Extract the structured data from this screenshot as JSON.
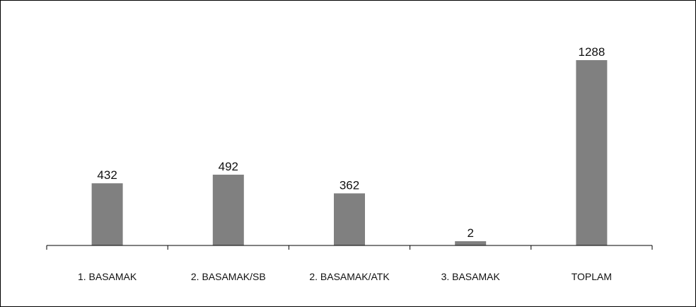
{
  "chart_data": {
    "type": "bar",
    "title": "",
    "xlabel": "",
    "ylabel": "",
    "categories": [
      "1. BASAMAK",
      "2. BASAMAK/SB",
      "2. BASAMAK/ATK",
      "3. BASAMAK",
      "TOPLAM"
    ],
    "values": [
      432,
      492,
      362,
      2,
      1288
    ],
    "data_labels": [
      "432",
      "492",
      "362",
      "2",
      "1288"
    ],
    "ylim": [
      0,
      1500
    ],
    "grid": false,
    "legend": "none",
    "bar_color": "#808080",
    "axis_color": "#000000"
  }
}
